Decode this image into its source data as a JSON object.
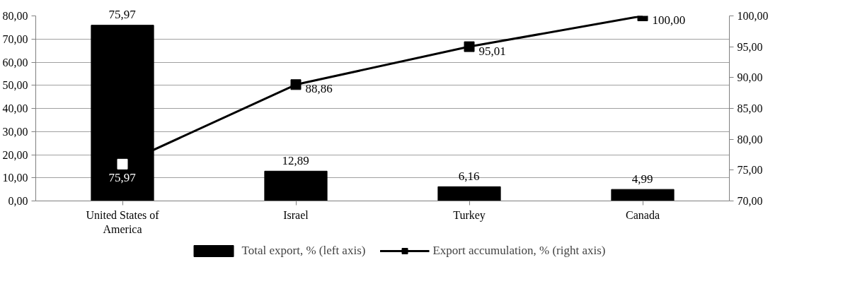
{
  "chart_data": {
    "type": "bar",
    "categories": [
      "United States of America",
      "Israel",
      "Turkey",
      "Canada"
    ],
    "series": [
      {
        "name": "Total export, % (left axis)",
        "color": "#000000",
        "values": [
          75.97,
          12.89,
          6.16,
          4.99
        ],
        "value_labels": [
          "75,97",
          "12,89",
          "6,16",
          "4,99"
        ]
      },
      {
        "name": "Export accumulation, % (right axis)",
        "type": "line",
        "axis": "y2",
        "color": "#000000",
        "colors": [
          "#ffffff",
          "#000000",
          "#000000",
          "#000000"
        ],
        "values": [
          75.97,
          88.86,
          95.01,
          100.0
        ],
        "value_labels": [
          "75,97",
          "88,86",
          "95,01",
          "100,00"
        ]
      }
    ],
    "ylim": [
      0,
      80
    ],
    "yticks": [
      {
        "value": 0,
        "label": "0,00"
      },
      {
        "value": 10,
        "label": "10,00"
      },
      {
        "value": 20,
        "label": "20,00"
      },
      {
        "value": 30,
        "label": "30,00"
      },
      {
        "value": 40,
        "label": "40,00"
      },
      {
        "value": 50,
        "label": "50,00"
      },
      {
        "value": 60,
        "label": "60,00"
      },
      {
        "value": 70,
        "label": "70,00"
      },
      {
        "value": 80,
        "label": "80,00"
      }
    ],
    "y2lim": [
      70,
      100
    ],
    "y2ticks": [
      {
        "value": 70,
        "label": "70,00"
      },
      {
        "value": 75,
        "label": "75,00"
      },
      {
        "value": 80,
        "label": "80,00"
      },
      {
        "value": 85,
        "label": "85,00"
      },
      {
        "value": 90,
        "label": "90,00"
      },
      {
        "value": 95,
        "label": "95,00"
      },
      {
        "value": 100,
        "label": "100,00"
      }
    ],
    "grid": "y",
    "legend": "bottom",
    "marker": "square",
    "line_style": "solid"
  }
}
